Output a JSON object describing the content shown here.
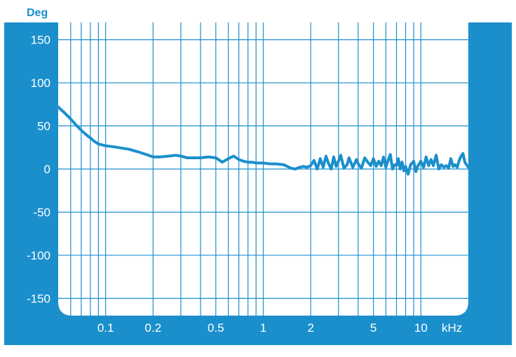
{
  "chart_data": {
    "type": "line",
    "title": "",
    "ylabel": "Deg",
    "xlabel": "kHz",
    "x_scale": "log",
    "x_range_khz": [
      0.05,
      20
    ],
    "ylim": [
      -170,
      170
    ],
    "y_ticks": [
      150,
      100,
      50,
      0,
      -50,
      -100,
      -150
    ],
    "y_tick_labels": [
      "150",
      "100",
      "50",
      "0",
      "-50",
      "-100",
      "-150"
    ],
    "x_ticks": [
      0.1,
      0.2,
      0.5,
      1,
      2,
      5,
      10
    ],
    "x_tick_labels": [
      "0.1",
      "0.2",
      "0.5",
      "1",
      "2",
      "5",
      "10"
    ],
    "grid": true,
    "colors": {
      "frame": "#1b8fcc",
      "grid": "#1b8fcc",
      "plot_background": "#ffffff",
      "tick_text": "#ffffff",
      "unit_text": "#1b8fcc",
      "line": "#1b8fcc"
    },
    "series": [
      {
        "x": [
          0.05,
          0.055,
          0.06,
          0.065,
          0.07,
          0.075,
          0.08,
          0.085,
          0.09,
          0.1,
          0.11,
          0.12,
          0.14,
          0.16,
          0.18,
          0.2,
          0.22,
          0.25,
          0.28,
          0.3,
          0.33,
          0.36,
          0.4,
          0.45,
          0.5,
          0.55,
          0.6,
          0.65,
          0.7,
          0.75,
          0.8,
          0.85,
          0.9,
          1.0,
          1.1,
          1.2,
          1.35,
          1.5,
          1.6,
          1.7,
          1.8,
          1.9,
          2.0,
          2.1,
          2.2,
          2.3,
          2.4,
          2.5,
          2.6,
          2.7,
          2.8,
          2.9,
          3.0,
          3.1,
          3.25,
          3.4,
          3.5,
          3.7,
          3.9,
          4.0,
          4.2,
          4.4,
          4.6,
          4.8,
          5.0,
          5.2,
          5.4,
          5.6,
          5.8,
          6.0,
          6.2,
          6.4,
          6.6,
          6.8,
          7.0,
          7.2,
          7.4,
          7.6,
          7.8,
          8.0,
          8.3,
          8.6,
          9.0,
          9.3,
          9.6,
          10.0,
          10.4,
          10.8,
          11.2,
          11.6,
          12.0,
          12.5,
          13.0,
          13.5,
          14.0,
          14.5,
          15.0,
          15.5,
          16.0,
          16.5,
          17.0,
          17.5,
          18.0,
          18.5,
          19.0,
          20.0
        ],
        "y": [
          72,
          65,
          58,
          51,
          45,
          40,
          36,
          32,
          29,
          27,
          26,
          25,
          23,
          20,
          17,
          14,
          14,
          15,
          16,
          15,
          13,
          13,
          13,
          14,
          13,
          8,
          12,
          15,
          11,
          9,
          8,
          8,
          7,
          7,
          6,
          6,
          5,
          1,
          0,
          2,
          3,
          2,
          4,
          10,
          0,
          12,
          2,
          15,
          6,
          0,
          14,
          3,
          9,
          16,
          1,
          5,
          13,
          2,
          11,
          6,
          1,
          13,
          8,
          4,
          12,
          3,
          9,
          4,
          14,
          2,
          10,
          17,
          0,
          5,
          4,
          12,
          0,
          8,
          -2,
          3,
          -6,
          5,
          9,
          -3,
          4,
          9,
          2,
          14,
          4,
          11,
          4,
          16,
          0,
          5,
          2,
          4,
          1,
          12,
          3,
          5,
          2,
          10,
          15,
          18,
          8,
          2
        ]
      }
    ]
  }
}
